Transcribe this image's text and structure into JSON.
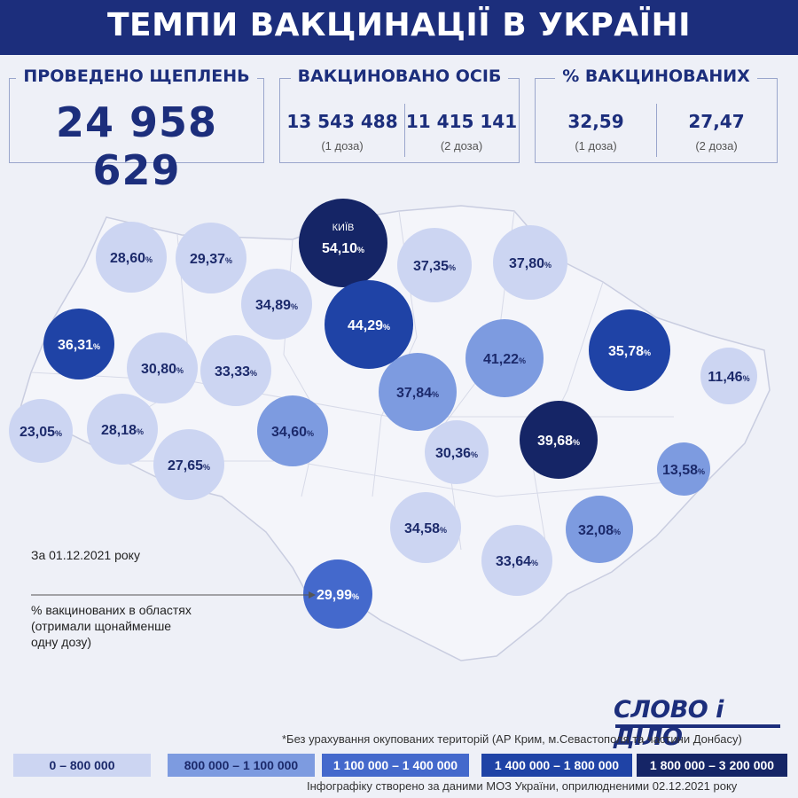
{
  "title": "ТЕМПИ ВАКЦИНАЦІЇ В УКРАЇНІ",
  "stats": {
    "doses": {
      "label": "ПРОВЕДЕНО ЩЕПЛЕНЬ",
      "value": "24 958 629"
    },
    "persons": {
      "label": "ВАКЦИНОВАНО ОСІБ",
      "dose1": {
        "value": "13 543 488",
        "note": "(1 доза)"
      },
      "dose2": {
        "value": "11 415 141",
        "note": "(2 доза)"
      }
    },
    "percent": {
      "label": "% ВАКЦИНОВАНИХ",
      "dose1": {
        "value": "32,59",
        "note": "(1 доза)"
      },
      "dose2": {
        "value": "27,47",
        "note": "(2 доза)"
      }
    }
  },
  "date_note": "За 01.12.2021 року",
  "annotation": [
    "% вакцинованих в областях",
    "(отримали щонайменше",
    "одну дозу)"
  ],
  "chart_data": {
    "type": "bubble-map",
    "value_unit": "%",
    "regions": [
      {
        "value": "28,60",
        "level": 0
      },
      {
        "value": "29,37",
        "level": 0
      },
      {
        "value": "54,10",
        "level": 4,
        "label": "КИЇВ"
      },
      {
        "value": "37,35",
        "level": 0
      },
      {
        "value": "37,80",
        "level": 0
      },
      {
        "value": "34,89",
        "level": 0
      },
      {
        "value": "44,29",
        "level": 3
      },
      {
        "value": "36,31",
        "level": 3
      },
      {
        "value": "30,80",
        "level": 0
      },
      {
        "value": "33,33",
        "level": 0
      },
      {
        "value": "41,22",
        "level": 1
      },
      {
        "value": "35,78",
        "level": 3
      },
      {
        "value": "11,46",
        "level": 0
      },
      {
        "value": "37,84",
        "level": 1
      },
      {
        "value": "23,05",
        "level": 0
      },
      {
        "value": "28,18",
        "level": 0
      },
      {
        "value": "34,60",
        "level": 1
      },
      {
        "value": "27,65",
        "level": 0
      },
      {
        "value": "30,36",
        "level": 0
      },
      {
        "value": "39,68",
        "level": 4
      },
      {
        "value": "13,58",
        "level": 1
      },
      {
        "value": "34,58",
        "level": 0
      },
      {
        "value": "32,08",
        "level": 1
      },
      {
        "value": "33,64",
        "level": 0
      },
      {
        "value": "29,99",
        "level": 2
      }
    ],
    "legend": [
      {
        "label": "0 – 800 000",
        "color": "#ccd5f2"
      },
      {
        "label": "800 000 – 1 100 000",
        "color": "#7d9be0"
      },
      {
        "label": "1 100 000 – 1 400 000",
        "color": "#4469cc"
      },
      {
        "label": "1 400 000 – 1 800 000",
        "color": "#1f43a6"
      },
      {
        "label": "1 800 000 – 3 200 000",
        "color": "#152566"
      }
    ]
  },
  "logo": "СЛОВО і ДІЛО",
  "footer": {
    "disclaimer": "*Без урахування окупованих територій (АР Крим, м.Севастополя та частини Донбасу)",
    "source": "Інфографіку створено за даними МОЗ України, оприлюдненими 02.12.2021 року"
  }
}
